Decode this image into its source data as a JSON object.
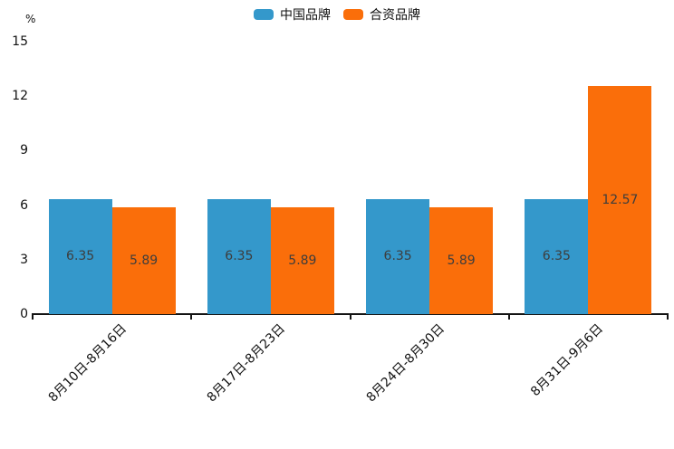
{
  "chart_data": {
    "type": "bar",
    "title": "",
    "unit": "%",
    "categories": [
      "8月10日-8月16日",
      "8月17日-8月23日",
      "8月24日-8月30日",
      "8月31日-9月6日"
    ],
    "series": [
      {
        "name": "中国品牌",
        "color": "#3498CB",
        "values": [
          6.35,
          6.35,
          6.35,
          6.35
        ]
      },
      {
        "name": "合资品牌",
        "color": "#FA6E0A",
        "values": [
          5.89,
          5.89,
          5.89,
          12.57
        ]
      }
    ],
    "value_labels": [
      "6.35",
      "5.89",
      "6.35",
      "5.89",
      "6.35",
      "5.89",
      "6.35",
      "12.57"
    ],
    "ylim": [
      0,
      15
    ],
    "yticks": [
      0,
      3,
      6,
      9,
      12,
      15
    ],
    "grid": false,
    "legend_position": "top-center",
    "value_label_color": "#3d3d3d",
    "axis_color": "#141414"
  }
}
